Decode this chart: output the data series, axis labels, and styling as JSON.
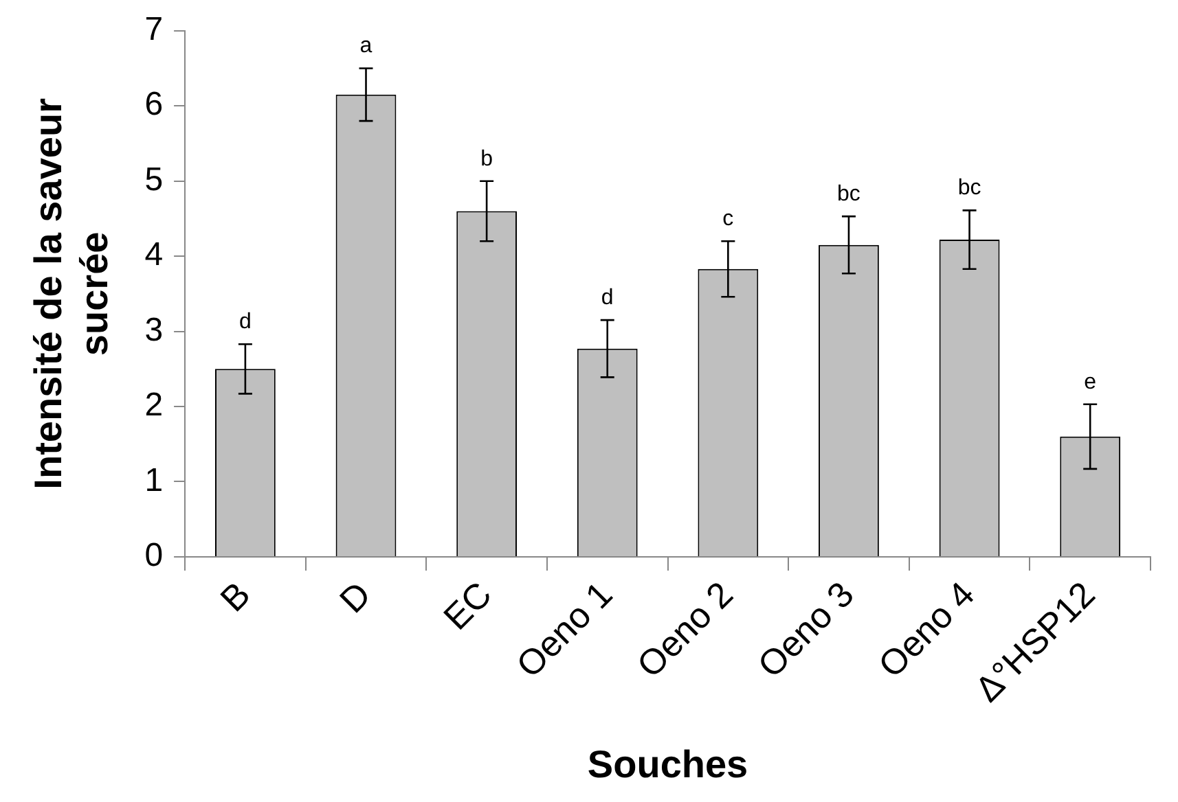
{
  "chart_data": {
    "type": "bar",
    "xlabel": "Souches",
    "ylabel": "Intensité de la saveur sucrée",
    "categories": [
      "B",
      "D",
      "EC",
      "Oeno 1",
      "Oeno 2",
      "Oeno 3",
      "Oeno 4",
      "Δ°HSP12"
    ],
    "values": [
      2.5,
      6.15,
      4.6,
      2.77,
      3.83,
      4.15,
      4.22,
      1.6
    ],
    "errors": [
      0.33,
      0.35,
      0.4,
      0.38,
      0.37,
      0.38,
      0.39,
      0.43
    ],
    "color": "#bfbfbf",
    "ylim": [
      0,
      7
    ],
    "yticks": [
      0,
      1,
      2,
      3,
      4,
      5,
      6,
      7
    ],
    "grid": false,
    "legend": false,
    "annotations": [
      {
        "text": "d",
        "x": "B",
        "y": 2.83
      },
      {
        "text": "a",
        "x": "D",
        "y": 6.5
      },
      {
        "text": "b",
        "x": "EC",
        "y": 5.0
      },
      {
        "text": "d",
        "x": "Oeno 1",
        "y": 3.15
      },
      {
        "text": "c",
        "x": "Oeno 2",
        "y": 4.2
      },
      {
        "text": "bc",
        "x": "Oeno 3",
        "y": 4.53
      },
      {
        "text": "bc",
        "x": "Oeno 4",
        "y": 4.61
      },
      {
        "text": "e",
        "x": "Δ°HSP12",
        "y": 2.03
      }
    ]
  }
}
